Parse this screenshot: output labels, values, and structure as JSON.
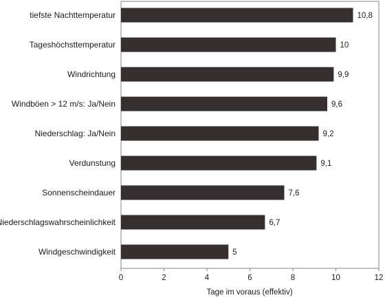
{
  "chart_data": {
    "type": "bar",
    "orientation": "horizontal",
    "categories": [
      "tiefste Nachttemperatur",
      "Tageshöchsttemperatur",
      "Windrichtung",
      "Windböen > 12 m/s: Ja/Nein",
      "Niederschlag: Ja/Nein",
      "Verdunstung",
      "Sonnenscheindauer",
      "Niederschlagswahrscheinlichkeit",
      "Windgeschwindigkeit"
    ],
    "values": [
      10.8,
      10,
      9.9,
      9.6,
      9.2,
      9.1,
      7.6,
      6.7,
      5
    ],
    "value_labels": [
      "10,8",
      "10",
      "9,9",
      "9,6",
      "9,2",
      "9,1",
      "7,6",
      "6,7",
      "5"
    ],
    "xlabel": "Tage im voraus (effektiv)",
    "ylabel": "",
    "xlim": [
      0,
      12
    ],
    "xticks": [
      0,
      2,
      4,
      6,
      8,
      10,
      12
    ],
    "grid": false,
    "legend": "none",
    "bar_color": "#352f2f"
  }
}
